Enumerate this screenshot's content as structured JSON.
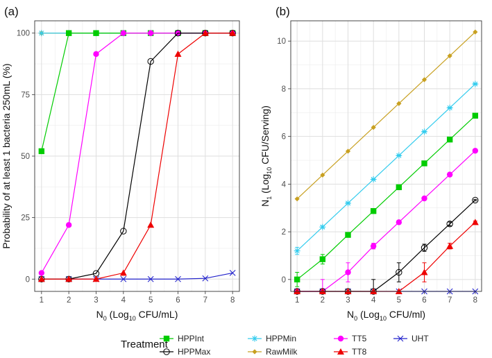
{
  "legend": {
    "title": "Treatment",
    "placement": "bottom",
    "entries": [
      {
        "key": "HPPInt",
        "label": "HPPInt"
      },
      {
        "key": "HPPMax",
        "label": "HPPMax"
      },
      {
        "key": "HPPMin",
        "label": "HPPMin"
      },
      {
        "key": "RawMilk",
        "label": "RawMilk"
      },
      {
        "key": "TT5",
        "label": "TT5"
      },
      {
        "key": "TT8",
        "label": "TT8"
      },
      {
        "key": "UHT",
        "label": "UHT"
      }
    ]
  },
  "styles": {
    "HPPInt": {
      "color": "#00cc00",
      "marker": "filled-square"
    },
    "HPPMax": {
      "color": "#000000",
      "marker": "open-circle"
    },
    "HPPMin": {
      "color": "#33ccee",
      "marker": "asterisk"
    },
    "RawMilk": {
      "color": "#c8a020",
      "marker": "filled-diamond"
    },
    "TT5": {
      "color": "#ff00ff",
      "marker": "filled-circle"
    },
    "TT8": {
      "color": "#ee0000",
      "marker": "filled-triangle"
    },
    "UHT": {
      "color": "#2222cc",
      "marker": "x-cross"
    }
  },
  "chart_data": [
    {
      "panel": "(a)",
      "type": "line",
      "grid": true,
      "xlabel": {
        "main": "N",
        "sub": "0",
        "rest": " (Log",
        "sub2": "10",
        "rest2": " CFU/mL)"
      },
      "ylabel": "Probability of at least 1 bacteria 250mL (%)",
      "xlim": [
        0.75,
        8.25
      ],
      "ylim": [
        -5,
        105
      ],
      "xticks": [
        1,
        2,
        3,
        4,
        5,
        6,
        7,
        8
      ],
      "yticks": [
        0,
        25,
        50,
        75,
        100
      ],
      "x": [
        1,
        2,
        3,
        4,
        5,
        6,
        7,
        8
      ],
      "series": [
        {
          "key": "UHT",
          "values": [
            0,
            0,
            0,
            0,
            0,
            0,
            0.3,
            2.5
          ]
        },
        {
          "key": "RawMilk",
          "values": [
            100,
            100,
            100,
            100,
            100,
            100,
            100,
            100
          ]
        },
        {
          "key": "HPPMin",
          "values": [
            100,
            100,
            100,
            100,
            100,
            100,
            100,
            100
          ]
        },
        {
          "key": "HPPInt",
          "values": [
            52,
            100,
            100,
            100,
            100,
            100,
            100,
            100
          ]
        },
        {
          "key": "TT5",
          "values": [
            2.5,
            22,
            91.5,
            100,
            100,
            100,
            100,
            100
          ]
        },
        {
          "key": "HPPMax",
          "values": [
            0,
            0,
            2.3,
            19.5,
            88.5,
            100,
            100,
            100
          ]
        },
        {
          "key": "TT8",
          "values": [
            0,
            0,
            0,
            2.5,
            22,
            91.5,
            100,
            100
          ]
        }
      ]
    },
    {
      "panel": "(b)",
      "type": "line",
      "grid": true,
      "xlabel": {
        "main": "N",
        "sub": "0",
        "rest": " (Log",
        "sub2": "10",
        "rest2": " CFU/ml)"
      },
      "ylabel": {
        "main": "N",
        "sub": "1",
        "rest": " (Log",
        "sub2": "10",
        "rest2": " CFU/Serving)"
      },
      "xlim": [
        0.75,
        8.25
      ],
      "ylim": [
        -0.5,
        10.85
      ],
      "xticks": [
        1,
        2,
        3,
        4,
        5,
        6,
        7,
        8
      ],
      "yticks": [
        0,
        2,
        4,
        6,
        8,
        10
      ],
      "x": [
        1,
        2,
        3,
        4,
        5,
        6,
        7,
        8
      ],
      "series": [
        {
          "key": "UHT",
          "values": [
            -0.5,
            -0.5,
            -0.5,
            -0.5,
            -0.5,
            -0.5,
            -0.5,
            -0.5
          ]
        },
        {
          "key": "RawMilk",
          "values": [
            3.38,
            4.38,
            5.38,
            6.38,
            7.38,
            8.38,
            9.38,
            10.38
          ]
        },
        {
          "key": "HPPMin",
          "values": [
            1.2,
            2.2,
            3.2,
            4.2,
            5.2,
            6.2,
            7.2,
            8.2
          ],
          "error": [
            0.15,
            0.05,
            0.03,
            0.02,
            0.02,
            0.02,
            0.02,
            0.02
          ]
        },
        {
          "key": "HPPInt",
          "values": [
            0.0,
            0.85,
            1.87,
            2.87,
            3.87,
            4.87,
            5.87,
            6.87
          ],
          "error": [
            0.3,
            0.2,
            0.05,
            0.03,
            0.03,
            0.03,
            0.03,
            0.03
          ]
        },
        {
          "key": "TT5",
          "values": [
            -0.5,
            -0.5,
            0.3,
            1.4,
            2.4,
            3.4,
            4.4,
            5.4
          ],
          "error": [
            0,
            0.5,
            0.4,
            0.12,
            0.05,
            0.03,
            0.03,
            0.03
          ]
        },
        {
          "key": "HPPMax",
          "values": [
            -0.5,
            -0.5,
            -0.5,
            -0.5,
            0.3,
            1.33,
            2.33,
            3.33
          ],
          "error": [
            0,
            0,
            0,
            0.5,
            0.4,
            0.15,
            0.08,
            0.03
          ]
        },
        {
          "key": "TT8",
          "values": [
            -0.5,
            -0.5,
            -0.5,
            -0.5,
            -0.5,
            0.3,
            1.4,
            2.4
          ],
          "error": [
            0,
            0,
            0,
            0,
            0,
            0.4,
            0.12,
            0.05
          ]
        }
      ]
    }
  ]
}
